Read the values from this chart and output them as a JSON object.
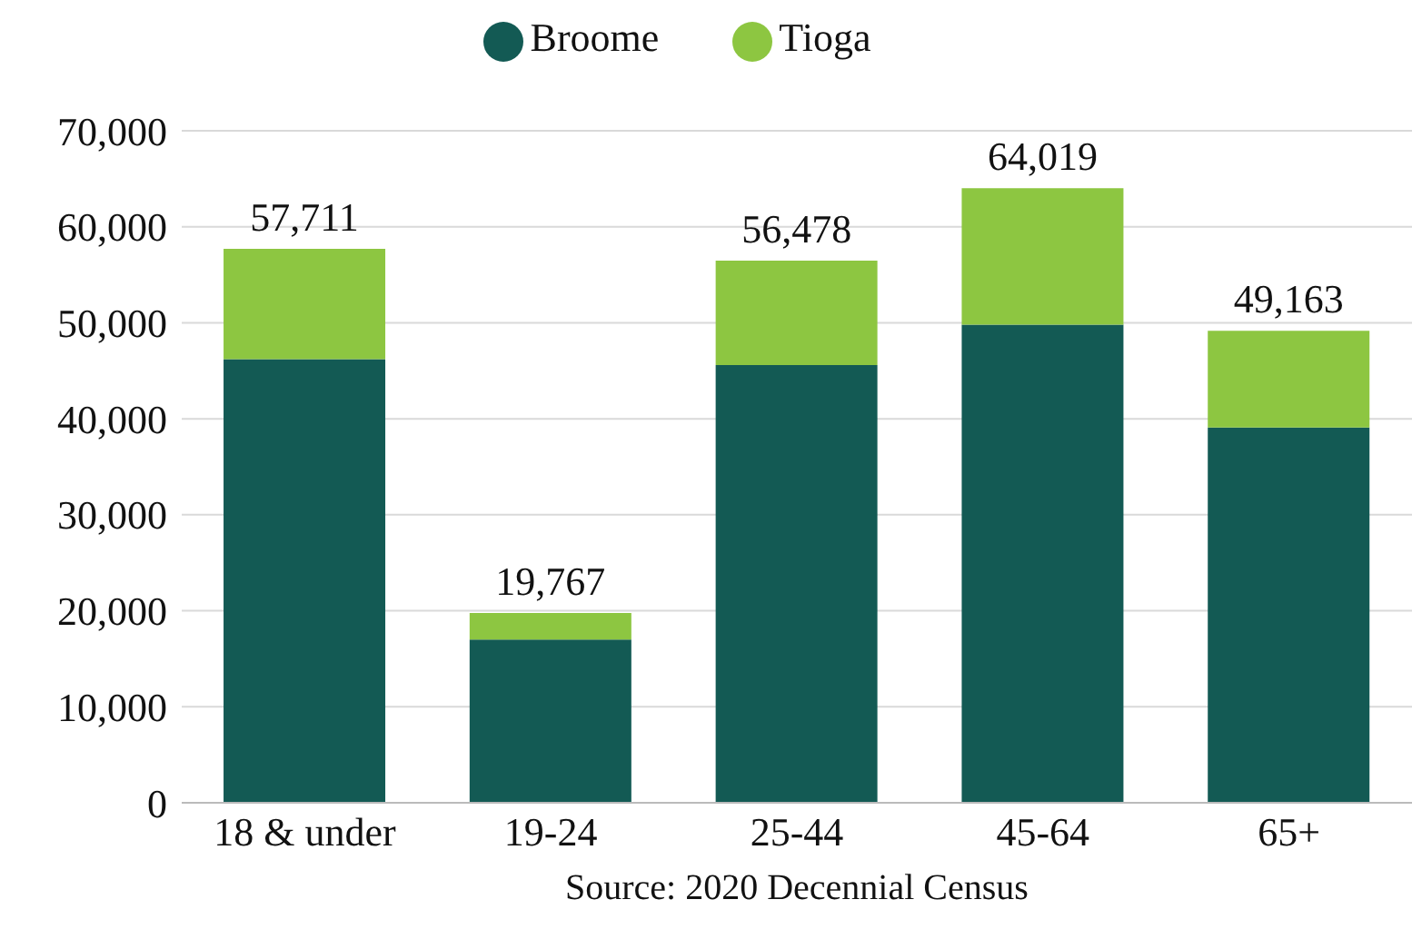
{
  "chart_data": {
    "type": "bar",
    "stacked": true,
    "categories": [
      "18 & under",
      "19-24",
      "25-44",
      "45-64",
      "65+"
    ],
    "series": [
      {
        "name": "Broome",
        "color": "#135a54",
        "values": [
          46200,
          17000,
          45600,
          49800,
          39100
        ]
      },
      {
        "name": "Tioga",
        "color": "#8dc641",
        "values": [
          11511,
          2767,
          10878,
          14219,
          10063
        ]
      }
    ],
    "totals": [
      "57,711",
      "19,767",
      "56,478",
      "64,019",
      "49,163"
    ],
    "ylim": [
      0,
      70000
    ],
    "yticks": [
      0,
      {
        "value": 10000,
        "label": "10,000"
      },
      {
        "value": 20000,
        "label": "20,000"
      },
      {
        "value": 30000,
        "label": "30,000"
      },
      {
        "value": 40000,
        "label": "40,000"
      },
      {
        "value": 50000,
        "label": "50,000"
      },
      {
        "value": 60000,
        "label": "60,000"
      },
      {
        "value": 70000,
        "label": "70,000"
      }
    ],
    "grid": "y",
    "legend": "top",
    "annotations": [
      "Source: 2020 Decennial Census"
    ]
  }
}
